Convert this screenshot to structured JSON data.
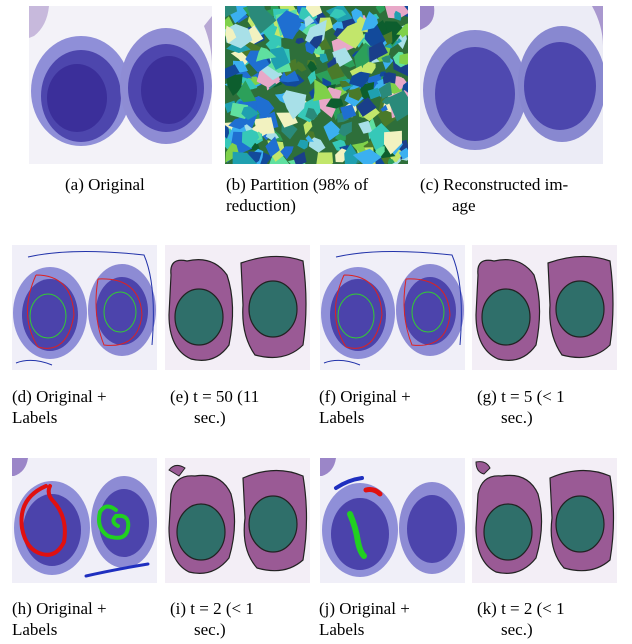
{
  "row1": {
    "panels": [
      {
        "id": "a",
        "caption_line1": "(a) Original",
        "caption_line2": ""
      },
      {
        "id": "b",
        "caption_line1": "(b) Partition (98% of",
        "caption_line2": "reduction)"
      },
      {
        "id": "c",
        "caption_line1": "(c) Reconstructed im-",
        "caption_line2": "age"
      }
    ]
  },
  "row2": {
    "panels": [
      {
        "id": "d",
        "caption_line1": "(d)  Original  +",
        "caption_line2": "Labels"
      },
      {
        "id": "e",
        "caption_line1": "(e)  t  =  50  (11",
        "caption_line2": "sec.)"
      },
      {
        "id": "f",
        "caption_line1": "(f)  Original  +",
        "caption_line2": "Labels"
      },
      {
        "id": "g",
        "caption_line1": "(g)  t  =  5  (< 1",
        "caption_line2": "sec.)"
      }
    ]
  },
  "row3": {
    "panels": [
      {
        "id": "h",
        "caption_line1": "(h)  Original  +",
        "caption_line2": "Labels"
      },
      {
        "id": "i",
        "caption_line1": "(i)  t  =  2  (< 1",
        "caption_line2": "sec.)"
      },
      {
        "id": "j",
        "caption_line1": "(j)  Original  +",
        "caption_line2": "Labels"
      },
      {
        "id": "k",
        "caption_line1": "(k)  t  =  2  (< 1",
        "caption_line2": "sec.)"
      }
    ]
  }
}
